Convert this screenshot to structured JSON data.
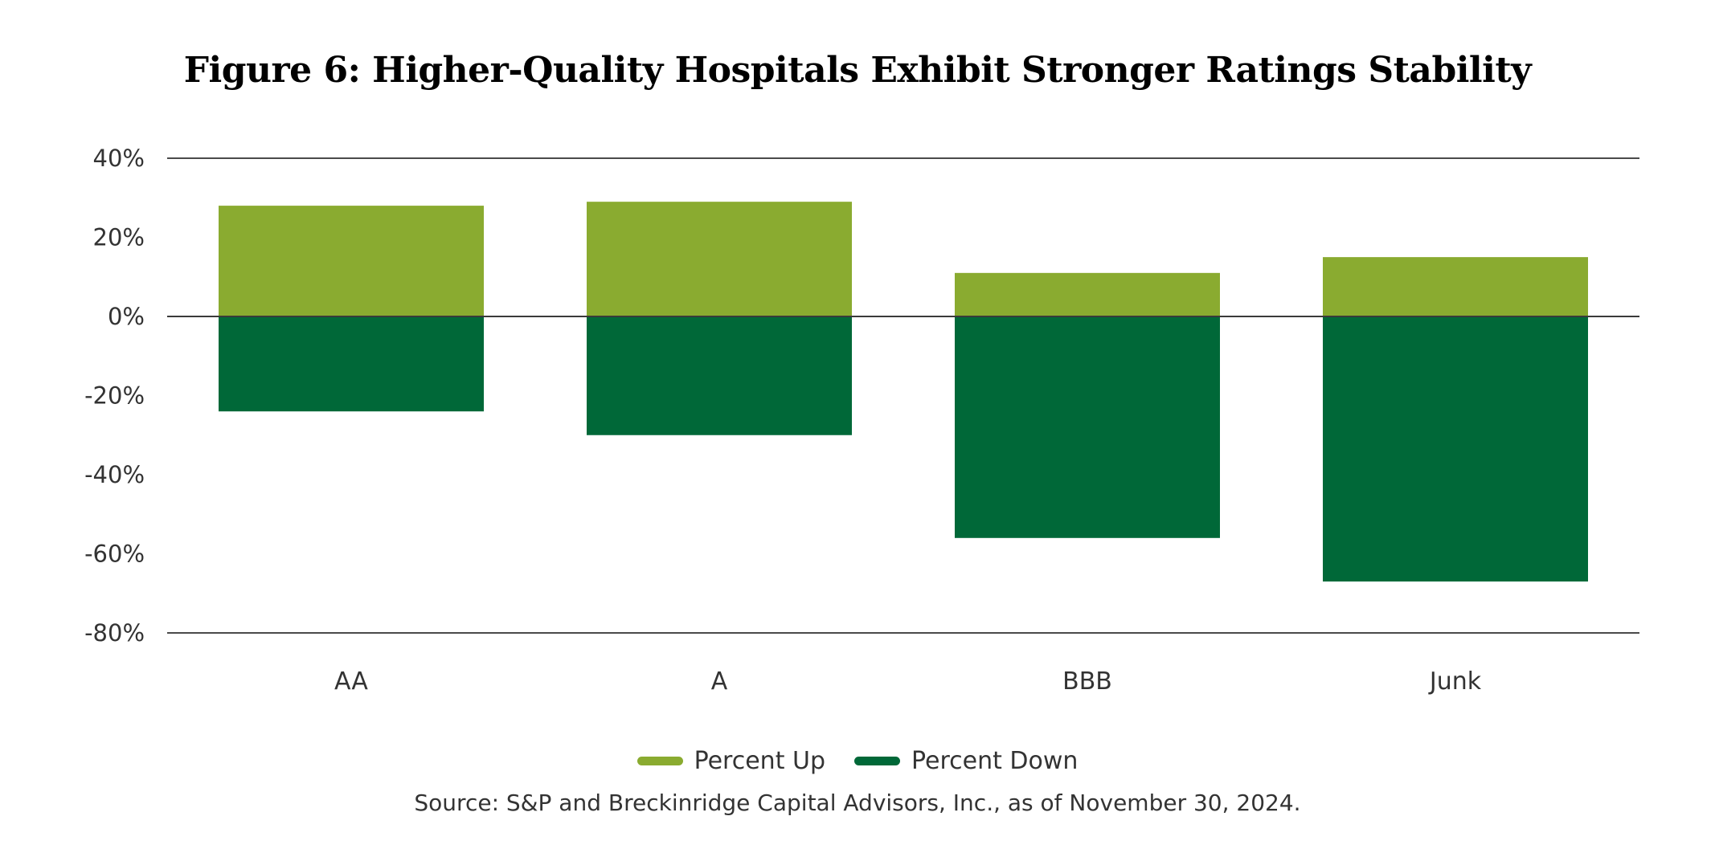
{
  "colors": {
    "up": "#8AAB30",
    "down": "#006838",
    "axis": "#4a4a4a",
    "text": "#333333"
  },
  "chart_data": {
    "type": "bar",
    "stacked": "diverging",
    "title": "Figure 6: Higher-Quality Hospitals Exhibit Stronger Ratings Stability",
    "xlabel": "",
    "ylabel": "",
    "categories": [
      "AA",
      "A",
      "BBB",
      "Junk"
    ],
    "series": [
      {
        "name": "Percent Up",
        "color": "#8AAB30",
        "values": [
          28,
          29,
          11,
          15
        ]
      },
      {
        "name": "Percent Down",
        "color": "#006838",
        "values": [
          -24,
          -30,
          -56,
          -67
        ]
      }
    ],
    "ylim": [
      -80,
      40
    ],
    "yticks": [
      40,
      20,
      0,
      -20,
      -40,
      -60,
      -80
    ],
    "ytick_labels": [
      "40%",
      "20%",
      "0%",
      "-20%",
      "-40%",
      "-60%",
      "-80%"
    ],
    "grid": "lines at 40%, 0% and -80% only",
    "legend_position": "bottom-center",
    "source": "Source: S&P and Breckinridge Capital Advisors, Inc., as of November 30, 2024."
  }
}
